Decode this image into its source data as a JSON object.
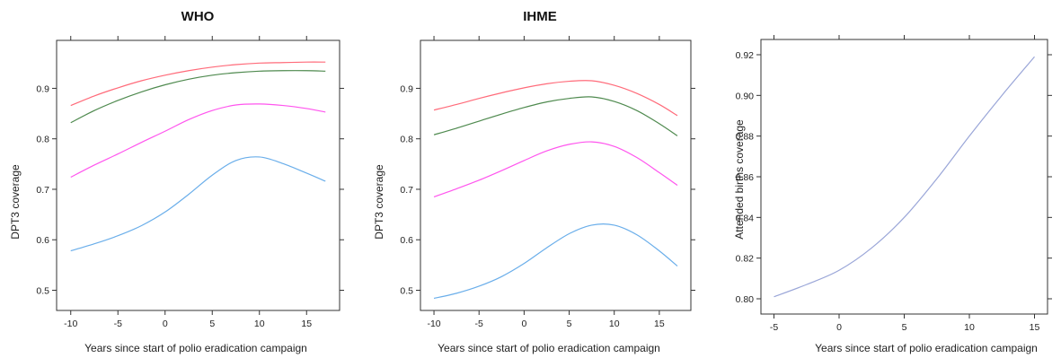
{
  "chart_data": [
    {
      "type": "line",
      "title": "WHO",
      "xlabel": "Years since start of polio eradication campaign",
      "ylabel": "DPT3 coverage",
      "xlim": [
        -11.5,
        18.5
      ],
      "ylim": [
        0.46,
        0.995
      ],
      "xticks": [
        -10,
        -5,
        0,
        5,
        10,
        15
      ],
      "yticks": [
        0.5,
        0.6,
        0.7,
        0.8,
        0.9
      ],
      "ytick_labels": [
        "0.5",
        "0.6",
        "0.7",
        "0.8",
        "0.9"
      ],
      "grid": false,
      "series": [
        {
          "color": "#ff6b7a",
          "x": [
            -10,
            -7.5,
            -5,
            -2.5,
            0,
            2.5,
            5,
            7.5,
            10,
            12.5,
            15,
            17
          ],
          "y": [
            0.866,
            0.885,
            0.901,
            0.915,
            0.926,
            0.935,
            0.942,
            0.947,
            0.95,
            0.951,
            0.952,
            0.952
          ]
        },
        {
          "color": "#4f8a4f",
          "x": [
            -10,
            -7.5,
            -5,
            -2.5,
            0,
            2.5,
            5,
            7.5,
            10,
            12.5,
            15,
            17
          ],
          "y": [
            0.832,
            0.856,
            0.876,
            0.893,
            0.907,
            0.918,
            0.926,
            0.931,
            0.934,
            0.935,
            0.935,
            0.934
          ]
        },
        {
          "color": "#ff55ee",
          "x": [
            -10,
            -7.5,
            -5,
            -2.5,
            0,
            2.5,
            5,
            7.5,
            10,
            12.5,
            15,
            17
          ],
          "y": [
            0.724,
            0.748,
            0.77,
            0.793,
            0.815,
            0.838,
            0.856,
            0.867,
            0.869,
            0.866,
            0.86,
            0.853
          ]
        },
        {
          "color": "#6aaeea",
          "x": [
            -10,
            -7.5,
            -5,
            -2.5,
            0,
            2.5,
            5,
            7.5,
            10,
            12.5,
            15,
            17
          ],
          "y": [
            0.578,
            0.592,
            0.608,
            0.628,
            0.655,
            0.69,
            0.728,
            0.757,
            0.764,
            0.751,
            0.732,
            0.716
          ]
        }
      ]
    },
    {
      "type": "line",
      "title": "IHME",
      "xlabel": "Years since start of polio eradication campaign",
      "ylabel": "DPT3 coverage",
      "xlim": [
        -11.5,
        18.5
      ],
      "ylim": [
        0.46,
        0.995
      ],
      "xticks": [
        -10,
        -5,
        0,
        5,
        10,
        15
      ],
      "yticks": [
        0.5,
        0.6,
        0.7,
        0.8,
        0.9
      ],
      "ytick_labels": [
        "0.5",
        "0.6",
        "0.7",
        "0.8",
        "0.9"
      ],
      "grid": false,
      "series": [
        {
          "color": "#ff6b7a",
          "x": [
            -10,
            -7.5,
            -5,
            -2.5,
            0,
            2.5,
            5,
            7.5,
            10,
            12.5,
            15,
            17
          ],
          "y": [
            0.857,
            0.868,
            0.88,
            0.891,
            0.901,
            0.909,
            0.914,
            0.915,
            0.906,
            0.89,
            0.868,
            0.846
          ]
        },
        {
          "color": "#4f8a4f",
          "x": [
            -10,
            -7.5,
            -5,
            -2.5,
            0,
            2.5,
            5,
            7.5,
            10,
            12.5,
            15,
            17
          ],
          "y": [
            0.808,
            0.821,
            0.835,
            0.849,
            0.862,
            0.873,
            0.88,
            0.883,
            0.874,
            0.856,
            0.83,
            0.806
          ]
        },
        {
          "color": "#ff55ee",
          "x": [
            -10,
            -7.5,
            -5,
            -2.5,
            0,
            2.5,
            5,
            7.5,
            10,
            12.5,
            15,
            17
          ],
          "y": [
            0.685,
            0.701,
            0.718,
            0.737,
            0.757,
            0.776,
            0.789,
            0.794,
            0.785,
            0.763,
            0.733,
            0.708
          ]
        },
        {
          "color": "#6aaeea",
          "x": [
            -10,
            -7.5,
            -5,
            -2.5,
            0,
            2.5,
            5,
            7.5,
            10,
            12.5,
            15,
            17
          ],
          "y": [
            0.484,
            0.494,
            0.508,
            0.527,
            0.553,
            0.584,
            0.612,
            0.629,
            0.629,
            0.61,
            0.578,
            0.548
          ]
        }
      ]
    },
    {
      "type": "line",
      "title": "",
      "xlabel": "Years since start of polio eradication campaign",
      "ylabel": "Attended births coverage",
      "xlim": [
        -6.0,
        16.0
      ],
      "ylim": [
        0.7925,
        0.9275
      ],
      "xticks": [
        -5,
        0,
        5,
        10,
        15
      ],
      "yticks": [
        0.8,
        0.82,
        0.84,
        0.86,
        0.88,
        0.9,
        0.92
      ],
      "ytick_labels": [
        "0.80",
        "0.82",
        "0.84",
        "0.86",
        "0.88",
        "0.90",
        "0.92"
      ],
      "grid": false,
      "series": [
        {
          "color": "#9aa6d8",
          "x": [
            -5,
            -2.5,
            0,
            2.5,
            5,
            7.5,
            10,
            12.5,
            15
          ],
          "y": [
            0.801,
            0.807,
            0.814,
            0.825,
            0.84,
            0.859,
            0.88,
            0.9,
            0.919
          ]
        }
      ]
    }
  ]
}
